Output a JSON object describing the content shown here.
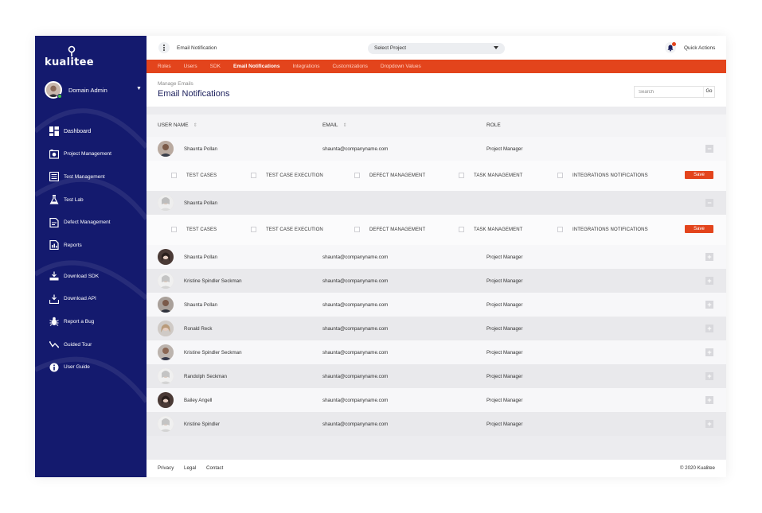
{
  "brand": {
    "logo_text": "kualitee"
  },
  "user": {
    "name": "Domain Admin"
  },
  "nav_primary": [
    {
      "label": "Dashboard",
      "icon": "dashboard-icon"
    },
    {
      "label": "Project Management",
      "icon": "project-management-icon"
    },
    {
      "label": "Test Management",
      "icon": "test-management-icon"
    },
    {
      "label": "Test Lab",
      "icon": "flask-icon"
    },
    {
      "label": "Defect Management",
      "icon": "defect-icon"
    },
    {
      "label": "Reports",
      "icon": "reports-icon"
    }
  ],
  "nav_secondary": [
    {
      "label": "Download SDK",
      "icon": "download-sdk-icon"
    },
    {
      "label": "Download API",
      "icon": "download-api-icon"
    },
    {
      "label": "Report a Bug",
      "icon": "bug-icon"
    },
    {
      "label": "Guided Tour",
      "icon": "guided-tour-icon"
    },
    {
      "label": "User Guide",
      "icon": "info-icon"
    }
  ],
  "topbar": {
    "page_label": "Email Notification",
    "project_select": "Select Project",
    "quick_actions": "Quick Actions"
  },
  "tabs": [
    {
      "label": "Roles",
      "active": false
    },
    {
      "label": "Users",
      "active": false
    },
    {
      "label": "SDK",
      "active": false
    },
    {
      "label": "Email Notifications",
      "active": true
    },
    {
      "label": "Integrations",
      "active": false
    },
    {
      "label": "Customizations",
      "active": false
    },
    {
      "label": "Dropdown Values",
      "active": false
    }
  ],
  "header": {
    "breadcrumb": "Manage Emails",
    "title": "Email Notifications",
    "search_placeholder": "Search",
    "search_button": "Go"
  },
  "table": {
    "columns": {
      "user_name": "USER NAME",
      "email": "EMAIL",
      "role": "ROLE"
    },
    "expanded_rows": [
      {
        "name": "Shaunta Pollan",
        "email": "shaunta@companyname.com",
        "role": "Project Manager",
        "toggle": "−"
      },
      {
        "name": "Shaunta Pollan",
        "email": "",
        "role": "",
        "toggle": "−"
      }
    ],
    "permissions": [
      "TEST CASES",
      "TEST CASE EXECUTION",
      "DEFECT MANAGEMENT",
      "TASK MANAGEMENT",
      "INTEGRATIONS NOTIFICATIONS"
    ],
    "save_label": "Save",
    "rows": [
      {
        "name": "Shaunta Pollan",
        "email": "shaunta@companyname.com",
        "role": "Project Manager",
        "toggle": "+"
      },
      {
        "name": "Kristine Spindler Seckman",
        "email": "shaunta@companyname.com",
        "role": "Project Manager",
        "toggle": "+"
      },
      {
        "name": "Shaunta Pollan",
        "email": "shaunta@companyname.com",
        "role": "Project Manager",
        "toggle": "+"
      },
      {
        "name": "Ronald Reck",
        "email": "shaunta@companyname.com",
        "role": "Project Manager",
        "toggle": "+"
      },
      {
        "name": "Kristine Spindler Seckman",
        "email": "shaunta@companyname.com",
        "role": "Project Manager",
        "toggle": "+"
      },
      {
        "name": "Randolph Seckman",
        "email": "shaunta@companyname.com",
        "role": "Project Manager",
        "toggle": "+"
      },
      {
        "name": "Bailey Angell",
        "email": "shaunta@companyname.com",
        "role": "Project Manager",
        "toggle": "+"
      },
      {
        "name": "Kristine Spindler",
        "email": "shaunta@companyname.com",
        "role": "Project Manager",
        "toggle": "+"
      }
    ]
  },
  "footer": {
    "links": [
      "Privacy",
      "Legal",
      "Contact"
    ],
    "copyright": "© 2020 Kualitee"
  },
  "colors": {
    "sidebar": "#141a6e",
    "accent": "#e3441c",
    "title": "#1b1f5c"
  }
}
